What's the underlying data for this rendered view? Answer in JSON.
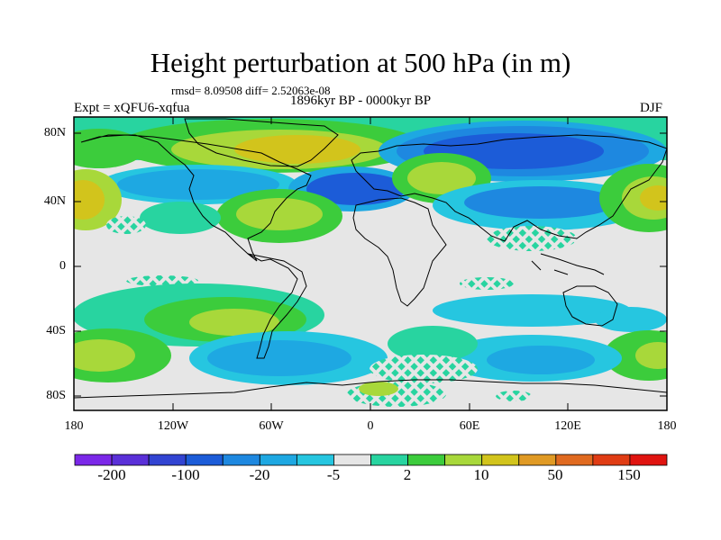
{
  "header": {
    "title": "Height perturbation at 500 hPa (in m)",
    "stats": "rmsd= 8.09508 diff= 2.52063e-08",
    "period": "1896kyr BP - 0000kyr BP",
    "experiment": "Expt = xQFU6-xqfua",
    "season": "DJF"
  },
  "map": {
    "lat_labels": [
      "80N",
      "40N",
      "0",
      "40S",
      "80S"
    ],
    "lon_labels": [
      "180",
      "120W",
      "60W",
      "0",
      "60E",
      "120E",
      "180"
    ]
  },
  "colorbar": {
    "colors": [
      "#7b28e8",
      "#5a30d8",
      "#3244d2",
      "#1c5cd8",
      "#1e88e0",
      "#1ea8e2",
      "#26c6e0",
      "#e6e6e6",
      "#28d4a0",
      "#3ccc3c",
      "#a8d83a",
      "#d2c41c",
      "#e09a24",
      "#e06a20",
      "#e03c14",
      "#e01410"
    ],
    "labels": [
      "-200",
      "-100",
      "-20",
      "-5",
      "2",
      "10",
      "50",
      "150"
    ]
  }
}
